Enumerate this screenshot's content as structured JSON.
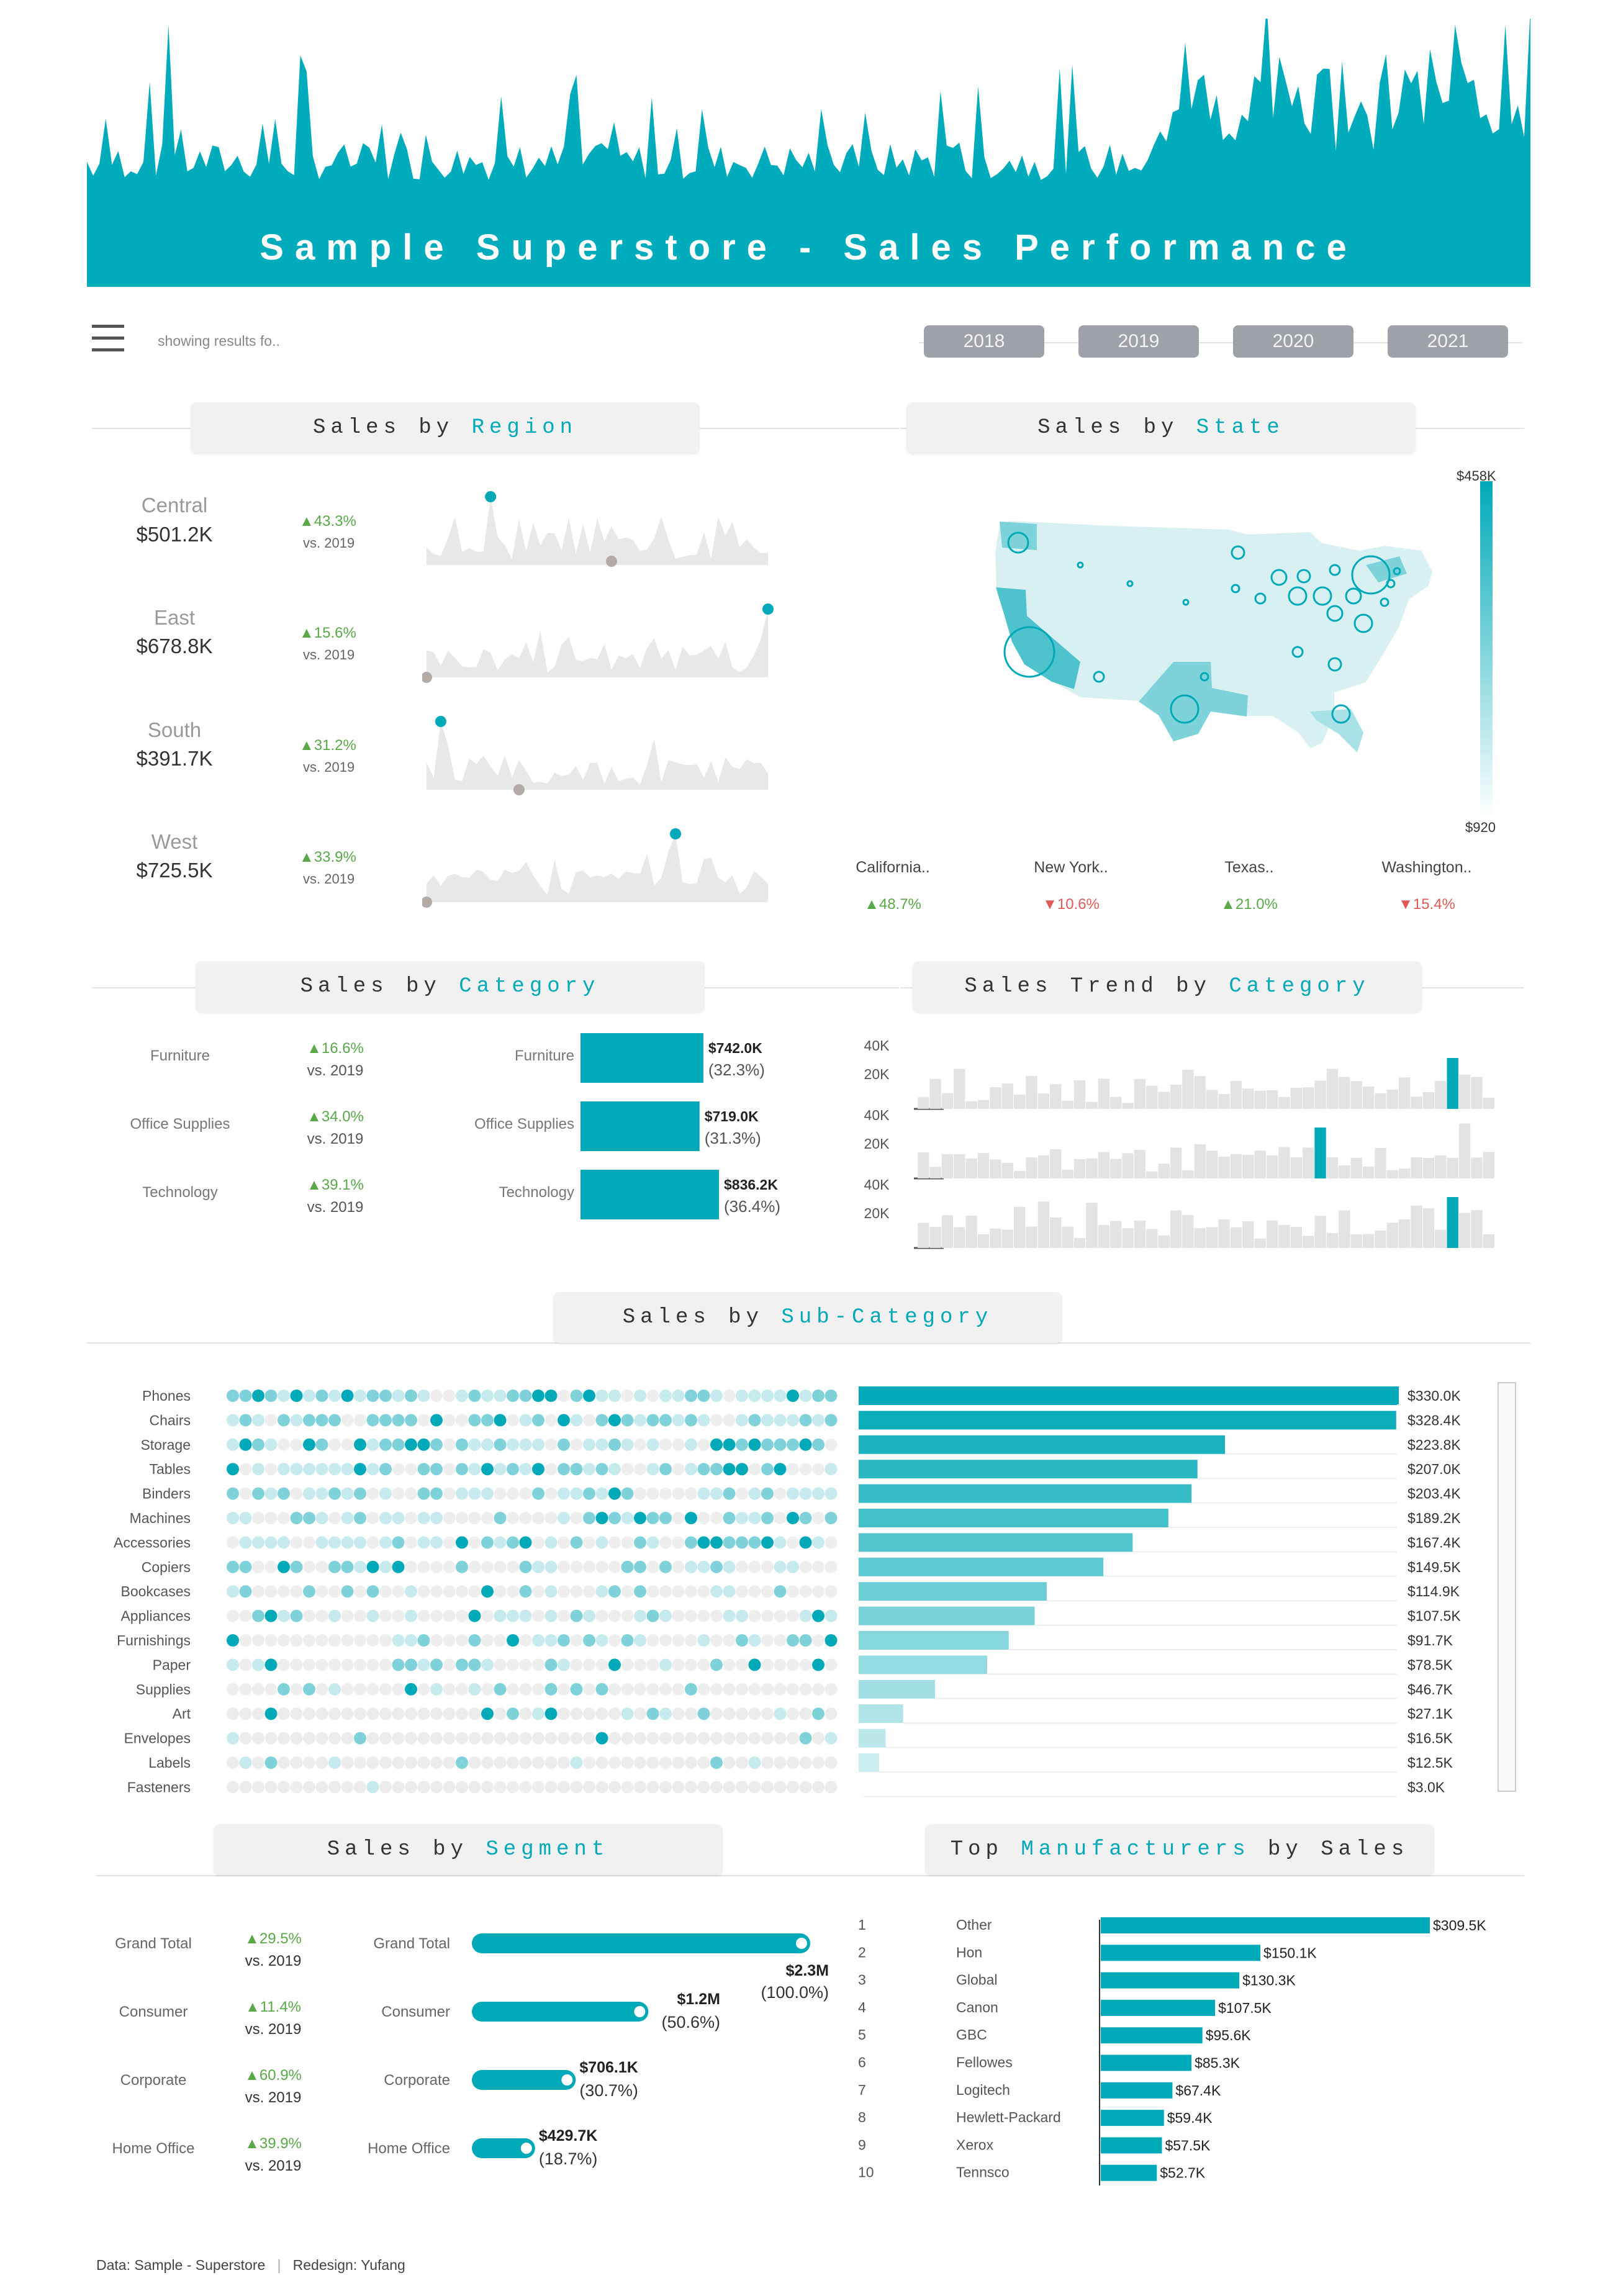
{
  "title": "Sample Superstore - Sales Performance",
  "filter_text": "showing results fo..",
  "years": [
    "2018",
    "2019",
    "2020",
    "2021"
  ],
  "colors": {
    "accent": "#00a9b8",
    "up": "#5aa84a",
    "down": "#e05a5a",
    "spark": "#e8e8e8",
    "header_bg": "#f1f1f1"
  },
  "sections": {
    "region": [
      "Sales by",
      "Region"
    ],
    "state": [
      "Sales by",
      "State"
    ],
    "category": [
      "Sales by",
      "Category"
    ],
    "trend": [
      "Sales Trend by",
      "Category"
    ],
    "subcategory": [
      "Sales by",
      "Sub-Category"
    ],
    "segment": [
      "Sales by",
      "Segment"
    ],
    "manufacturers": [
      "Top",
      "Manufacturers",
      "by Sales"
    ]
  },
  "regions": [
    {
      "name": "Central",
      "value": "$501.2K",
      "change": "▲43.3%",
      "vs": "vs. 2019"
    },
    {
      "name": "East",
      "value": "$678.8K",
      "change": "▲15.6%",
      "vs": "vs. 2019"
    },
    {
      "name": "South",
      "value": "$391.7K",
      "change": "▲31.2%",
      "vs": "vs. 2019"
    },
    {
      "name": "West",
      "value": "$725.5K",
      "change": "▲33.9%",
      "vs": "vs. 2019"
    }
  ],
  "state_legend": {
    "max": "$458K",
    "min": "$920"
  },
  "states": [
    {
      "name": "California..",
      "change": "▲48.7%",
      "dir": "up"
    },
    {
      "name": "New York..",
      "change": "▼10.6%",
      "dir": "down"
    },
    {
      "name": "Texas..",
      "change": "▲21.0%",
      "dir": "up"
    },
    {
      "name": "Washington..",
      "change": "▼15.4%",
      "dir": "down"
    }
  ],
  "trend_axis": [
    "40K",
    "20K"
  ],
  "subcategory_scroll": "$3.0K",
  "footer": {
    "data": "Data: Sample - Superstore",
    "sep": "|",
    "credit": "Redesign: Yufang"
  },
  "chart_data": [
    {
      "type": "bar",
      "name": "category",
      "categories": [
        "Furniture",
        "Office Supplies",
        "Technology"
      ],
      "values": [
        742.0,
        719.0,
        836.2
      ],
      "value_labels": [
        "$742.0K",
        "$719.0K",
        "$836.2K"
      ],
      "share_labels": [
        "(32.3%)",
        "(31.3%)",
        "(36.4%)"
      ],
      "changes": [
        "▲16.6%",
        "▲34.0%",
        "▲39.1%"
      ],
      "vs": "vs. 2019"
    },
    {
      "type": "bar",
      "name": "subcategory",
      "categories": [
        "Phones",
        "Chairs",
        "Storage",
        "Tables",
        "Binders",
        "Machines",
        "Accessories",
        "Copiers",
        "Bookcases",
        "Appliances",
        "Furnishings",
        "Paper",
        "Supplies",
        "Art",
        "Envelopes",
        "Labels",
        "Fasteners"
      ],
      "values": [
        330.0,
        328.4,
        223.8,
        207.0,
        203.4,
        189.2,
        167.4,
        149.5,
        114.9,
        107.5,
        91.7,
        78.5,
        46.7,
        27.1,
        16.5,
        12.5,
        3.0
      ],
      "value_labels": [
        "$330.0K",
        "$328.4K",
        "$223.8K",
        "$207.0K",
        "$203.4K",
        "$189.2K",
        "$167.4K",
        "$149.5K",
        "$114.9K",
        "$107.5K",
        "$91.7K",
        "$78.5K",
        "$46.7K",
        "$27.1K",
        "$16.5K",
        "$12.5K",
        "$3.0K"
      ]
    },
    {
      "type": "bar",
      "name": "segment",
      "categories": [
        "Grand Total",
        "Consumer",
        "Corporate",
        "Home Office"
      ],
      "values": [
        2300,
        1200,
        706.1,
        429.7
      ],
      "value_labels": [
        "$2.3M",
        "$1.2M",
        "$706.1K",
        "$429.7K"
      ],
      "share_labels": [
        "(100.0%)",
        "(50.6%)",
        "(30.7%)",
        "(18.7%)"
      ],
      "changes": [
        "▲29.5%",
        "▲11.4%",
        "▲60.9%",
        "▲39.9%"
      ],
      "vs": "vs. 2019"
    },
    {
      "type": "bar",
      "name": "manufacturers",
      "ranks": [
        "1",
        "2",
        "3",
        "4",
        "5",
        "6",
        "7",
        "8",
        "9",
        "10"
      ],
      "categories": [
        "Other",
        "Hon",
        "Global",
        "Canon",
        "GBC",
        "Fellowes",
        "Logitech",
        "Hewlett-Packard",
        "Xerox",
        "Tennsco"
      ],
      "values": [
        309.5,
        150.1,
        130.3,
        107.5,
        95.6,
        85.3,
        67.4,
        59.4,
        57.5,
        52.7
      ],
      "value_labels": [
        "$309.5K",
        "$150.1K",
        "$130.3K",
        "$107.5K",
        "$95.6K",
        "$85.3K",
        "$67.4K",
        "$59.4K",
        "$57.5K",
        "$52.7K"
      ]
    }
  ]
}
